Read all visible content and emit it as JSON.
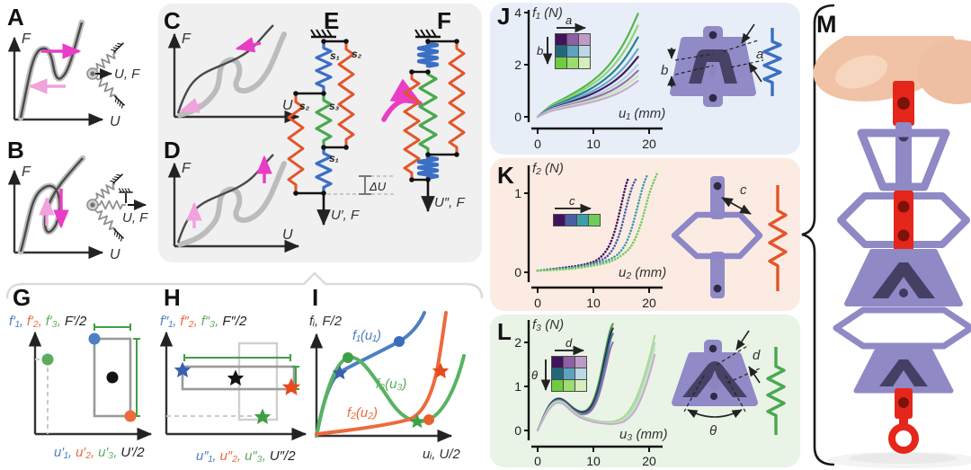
{
  "colors": {
    "spring_s1_blue": "#3b6fc4",
    "spring_s2_orange": "#e2562a",
    "spring_s3_green": "#4aa84e",
    "magenta_arrow": "#e93dc6",
    "pink_arrow": "#f0a3dc",
    "panel_j_bg": "#e8eef7",
    "panel_k_bg": "#fcebe2",
    "panel_l_bg": "#e9f3e6",
    "gray_box_bg": "#f0f0f1",
    "part_purple": "#908ac6",
    "part_channel": "#474166",
    "part_red": "#e4271a"
  },
  "panels": {
    "A": {
      "label": "A",
      "y_axis": "F",
      "x_axis": "U",
      "load": "U, F"
    },
    "B": {
      "label": "B",
      "y_axis": "F",
      "x_axis": "U",
      "load": "U, F"
    },
    "C": {
      "label": "C",
      "y_axis": "F",
      "x_axis": "U"
    },
    "D": {
      "label": "D",
      "y_axis": "F",
      "x_axis": "U"
    },
    "E": {
      "label": "E",
      "s1_top": "s₁",
      "s2_right": "s₂",
      "s2_left": "s₂",
      "s3_mid": "s₃",
      "s1_bottom": "s₁",
      "delta_u": "ΔU",
      "load": "U′, F"
    },
    "F": {
      "label": "F",
      "load": "U″, F"
    },
    "G": {
      "label": "G",
      "y_parts": [
        "f′₁,",
        "f′₂,",
        "f′₃,",
        "F′/2"
      ],
      "x_parts": [
        "u′₁,",
        "u′₂,",
        "u′₃,",
        "U′/2"
      ]
    },
    "H": {
      "label": "H",
      "y_parts": [
        "f″₁,",
        "f″₂,",
        "f″₃,",
        "F″/2"
      ],
      "x_parts": [
        "u″₁,",
        "u″₂,",
        "u″₃,",
        "U″/2"
      ]
    },
    "I": {
      "label": "I",
      "y_axis": "fᵢ, F/2",
      "x_axis": "uᵢ, U/2",
      "curve1": "f₁(u₁)",
      "curve2": "f₂(u₂)",
      "curve3": "f₃(u₃)"
    },
    "J": {
      "label": "J",
      "y_axis": "f₁ (N)",
      "x_axis": "u₁ (mm)",
      "y_ticks": [
        "0",
        "2",
        "4"
      ],
      "x_ticks": [
        "0",
        "10",
        "20"
      ],
      "inset": {
        "col_param": "a",
        "row_param": "b",
        "colors": [
          "#41135e",
          "#8e5fa2",
          "#bd9cc8",
          "#20697c",
          "#5ba3c0",
          "#bcd8e4",
          "#6fcb3f",
          "#9ddd6e",
          "#d6eebb"
        ]
      },
      "dim_a": "a",
      "dim_b": "b"
    },
    "K": {
      "label": "K",
      "y_axis": "f₂ (N)",
      "x_axis": "u₂ (mm)",
      "y_ticks": [
        "0",
        "1"
      ],
      "x_ticks": [
        "0",
        "10",
        "20"
      ],
      "inset": {
        "param": "c",
        "colors": [
          "#41135e",
          "#4a5ea6",
          "#3d9dab",
          "#6fce5a"
        ]
      },
      "dim_c": "c"
    },
    "L": {
      "label": "L",
      "y_axis": "f₃ (N)",
      "x_axis": "u₃ (mm)",
      "y_ticks": [
        "0",
        "1",
        "2"
      ],
      "x_ticks": [
        "0",
        "10",
        "20"
      ],
      "inset": {
        "col_param": "d",
        "row_param": "θ",
        "colors": [
          "#41135e",
          "#8e5fa2",
          "#bd9cc8",
          "#20697c",
          "#5ba3c0",
          "#bcd8e4",
          "#6fcb3f",
          "#9ddd6e",
          "#d6eebb"
        ]
      },
      "dim_d": "d",
      "dim_theta": "θ"
    },
    "M": {
      "label": "M"
    }
  },
  "chart_data": [
    {
      "type": "line",
      "title": "Bistable element J: force-displacement family over (a,b) sweep",
      "xlabel": "u₁ (mm)",
      "ylabel": "f₁ (N)",
      "xlim": [
        0,
        22
      ],
      "ylim": [
        0,
        4
      ],
      "grid": false,
      "x": [
        0,
        2,
        4,
        6,
        8,
        10,
        12,
        14,
        16,
        18
      ],
      "series": [
        {
          "name": "green",
          "color": "#56b649",
          "y": [
            0,
            0.4,
            0.62,
            0.85,
            1.1,
            1.4,
            1.78,
            2.3,
            3.0,
            3.95
          ]
        },
        {
          "name": "light-green",
          "color": "#8fd479",
          "y": [
            0,
            0.37,
            0.57,
            0.77,
            1.0,
            1.27,
            1.6,
            2.05,
            2.65,
            3.5
          ]
        },
        {
          "name": "teal",
          "color": "#2a7f93",
          "y": [
            0,
            0.34,
            0.52,
            0.7,
            0.9,
            1.13,
            1.42,
            1.8,
            2.32,
            3.05
          ]
        },
        {
          "name": "blue",
          "color": "#65aec8",
          "y": [
            0,
            0.31,
            0.47,
            0.63,
            0.8,
            1.0,
            1.25,
            1.57,
            2.0,
            2.6
          ]
        },
        {
          "name": "dark-purple",
          "color": "#45165f",
          "y": [
            0,
            0.29,
            0.43,
            0.57,
            0.72,
            0.9,
            1.12,
            1.4,
            1.78,
            2.3
          ]
        },
        {
          "name": "pale-blue",
          "color": "#aed3e2",
          "y": [
            0,
            0.27,
            0.4,
            0.52,
            0.65,
            0.8,
            0.99,
            1.23,
            1.55,
            2.0
          ]
        },
        {
          "name": "purple",
          "color": "#976eb0",
          "y": [
            0,
            0.25,
            0.36,
            0.47,
            0.58,
            0.72,
            0.88,
            1.09,
            1.37,
            1.77
          ]
        },
        {
          "name": "pale-green",
          "color": "#c9e9b0",
          "y": [
            0,
            0.23,
            0.33,
            0.43,
            0.53,
            0.65,
            0.79,
            0.97,
            1.22,
            1.57
          ]
        },
        {
          "name": "light-purple",
          "color": "#c6a9d2",
          "y": [
            0,
            0.21,
            0.3,
            0.39,
            0.48,
            0.58,
            0.7,
            0.86,
            1.07,
            1.38
          ]
        }
      ]
    },
    {
      "type": "line",
      "title": "Stiffening element K: force-displacement family over c sweep",
      "dotted": true,
      "xlabel": "u₂ (mm)",
      "ylabel": "f₂ (N)",
      "xlim": [
        0,
        22
      ],
      "ylim": [
        0,
        1.3
      ],
      "grid": false,
      "series": [
        {
          "name": "c1",
          "color": "#41135e",
          "x": [
            0,
            4,
            8,
            10,
            11,
            12,
            13,
            14,
            15,
            15.8,
            16.3
          ],
          "y": [
            0.02,
            0.05,
            0.09,
            0.13,
            0.17,
            0.24,
            0.35,
            0.55,
            0.85,
            1.1,
            1.2
          ]
        },
        {
          "name": "c2",
          "color": "#4a5ea6",
          "x": [
            0,
            4,
            8,
            10,
            12,
            13,
            14,
            15,
            16,
            17,
            17.8
          ],
          "y": [
            0.02,
            0.04,
            0.08,
            0.11,
            0.17,
            0.24,
            0.35,
            0.55,
            0.85,
            1.1,
            1.2
          ]
        },
        {
          "name": "c3",
          "color": "#3d9dab",
          "x": [
            0,
            4,
            8,
            12,
            14,
            15,
            16,
            17,
            18,
            19,
            19.6
          ],
          "y": [
            0.02,
            0.04,
            0.07,
            0.13,
            0.2,
            0.27,
            0.38,
            0.58,
            0.85,
            1.12,
            1.22
          ]
        },
        {
          "name": "c4",
          "color": "#6fce5a",
          "x": [
            0,
            4,
            8,
            12,
            14,
            16,
            17,
            18,
            19,
            20,
            21,
            21.5
          ],
          "y": [
            0.02,
            0.03,
            0.06,
            0.11,
            0.16,
            0.26,
            0.35,
            0.5,
            0.72,
            1.0,
            1.18,
            1.26
          ]
        }
      ]
    },
    {
      "type": "line",
      "title": "Nonmonotonic element L: force-displacement family over (d,θ) sweep",
      "xlabel": "u₃ (mm)",
      "ylabel": "f₃ (N)",
      "xlim": [
        0,
        22
      ],
      "ylim": [
        0,
        2.5
      ],
      "grid": false,
      "series": [
        {
          "name": "dark-green",
          "color": "#3f9f46",
          "x": [
            0,
            1,
            2,
            3,
            4,
            5,
            6,
            7,
            8,
            9,
            10,
            11,
            12,
            13,
            13.5
          ],
          "y": [
            0,
            0.31,
            0.57,
            0.71,
            0.74,
            0.67,
            0.55,
            0.46,
            0.42,
            0.47,
            0.66,
            1.08,
            1.72,
            2.3,
            2.42
          ]
        },
        {
          "name": "dark-purple",
          "color": "#45165f",
          "x": [
            0,
            1,
            2,
            3,
            4,
            5,
            6,
            7,
            8,
            9,
            10,
            11,
            12,
            13,
            13.5
          ],
          "y": [
            0,
            0.3,
            0.56,
            0.7,
            0.73,
            0.66,
            0.53,
            0.44,
            0.4,
            0.44,
            0.6,
            0.97,
            1.58,
            2.18,
            2.32
          ]
        },
        {
          "name": "teal",
          "color": "#2a7f93",
          "x": [
            0,
            1,
            2,
            3,
            4,
            5,
            6,
            7,
            8,
            9,
            10,
            11,
            12,
            13,
            13.5
          ],
          "y": [
            0,
            0.29,
            0.54,
            0.68,
            0.71,
            0.64,
            0.51,
            0.42,
            0.38,
            0.41,
            0.55,
            0.88,
            1.45,
            2.05,
            2.2
          ]
        },
        {
          "name": "purple",
          "color": "#976eb0",
          "x": [
            0,
            1,
            2,
            3,
            4,
            5,
            6,
            7,
            8,
            9,
            10,
            11,
            12,
            13,
            13.5
          ],
          "y": [
            0,
            0.28,
            0.52,
            0.66,
            0.69,
            0.62,
            0.49,
            0.4,
            0.36,
            0.38,
            0.5,
            0.78,
            1.28,
            1.85,
            2.0
          ]
        },
        {
          "name": "light-green",
          "color": "#a8dd85",
          "x": [
            0,
            1,
            2,
            3,
            4,
            5,
            6,
            7,
            8,
            10,
            12,
            14,
            16,
            18,
            20,
            21
          ],
          "y": [
            0,
            0.28,
            0.52,
            0.65,
            0.68,
            0.61,
            0.48,
            0.38,
            0.31,
            0.23,
            0.19,
            0.2,
            0.34,
            0.78,
            1.6,
            2.15
          ]
        },
        {
          "name": "pale-blue",
          "color": "#aed3e2",
          "x": [
            0,
            1,
            2,
            3,
            4,
            5,
            6,
            7,
            8,
            10,
            12,
            14,
            16,
            18,
            20,
            21
          ],
          "y": [
            0,
            0.27,
            0.5,
            0.63,
            0.66,
            0.59,
            0.46,
            0.36,
            0.29,
            0.21,
            0.17,
            0.17,
            0.28,
            0.68,
            1.45,
            1.98
          ]
        },
        {
          "name": "pale-green",
          "color": "#c9e9b0",
          "x": [
            0,
            1,
            2,
            3,
            4,
            5,
            6,
            7,
            8,
            10,
            12,
            14,
            16,
            18,
            20,
            21
          ],
          "y": [
            0,
            0.27,
            0.5,
            0.62,
            0.65,
            0.58,
            0.45,
            0.35,
            0.28,
            0.2,
            0.16,
            0.16,
            0.25,
            0.6,
            1.35,
            1.86
          ]
        },
        {
          "name": "light-purple",
          "color": "#c6a9d2",
          "x": [
            0,
            1,
            2,
            3,
            4,
            5,
            6,
            7,
            8,
            10,
            12,
            14,
            16,
            18,
            20,
            21
          ],
          "y": [
            0,
            0.26,
            0.48,
            0.61,
            0.64,
            0.57,
            0.44,
            0.34,
            0.27,
            0.19,
            0.15,
            0.14,
            0.22,
            0.52,
            1.22,
            1.72
          ]
        }
      ]
    }
  ]
}
